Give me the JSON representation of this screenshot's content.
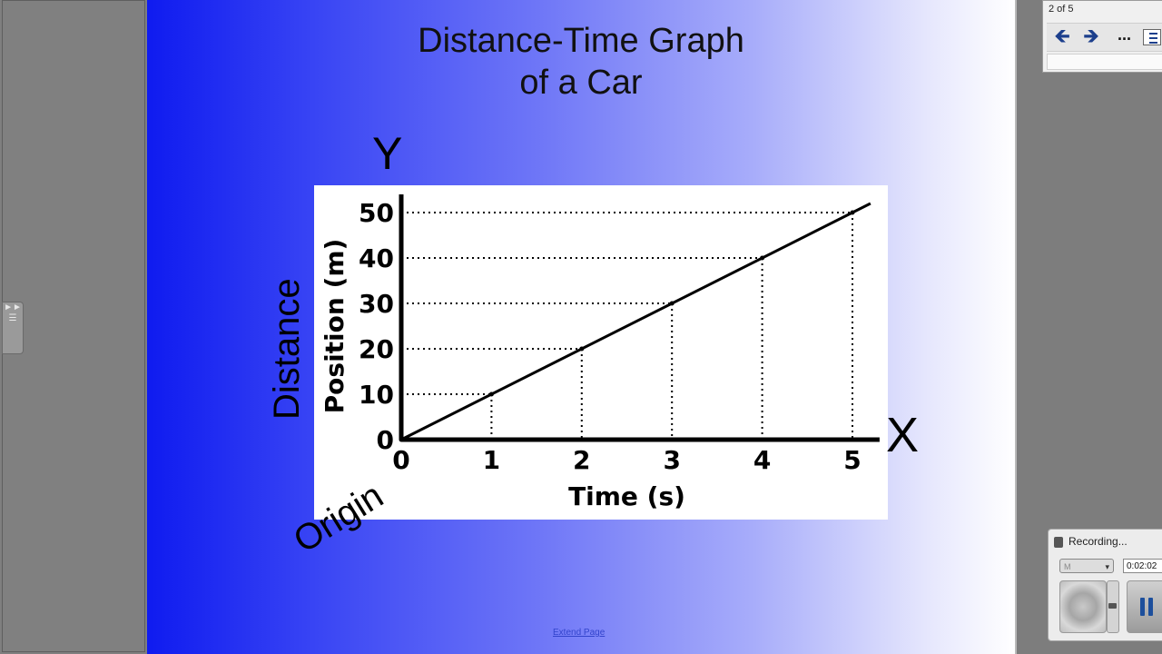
{
  "slide": {
    "title_line1": "Distance-Time Graph",
    "title_line2": "of a Car",
    "extend_link": "Extend Page"
  },
  "annotations": {
    "distance": "Distance",
    "origin": "Origin",
    "y_mark": "Y",
    "x_mark": "X"
  },
  "page_nav": {
    "page_count": "2 of 5",
    "more_label": "..."
  },
  "recorder": {
    "status": "Recording...",
    "dropdown_value": "M",
    "elapsed": "0:02:02"
  },
  "icons": {
    "side_tab": "fast-forward-icon",
    "back": "arrow-left-icon",
    "forward": "arrow-right-icon",
    "menu": "page-menu-icon",
    "record": "recorder-icon",
    "pause": "pause-icon"
  },
  "chart_data": {
    "type": "line",
    "title": "",
    "xlabel": "Time (s)",
    "ylabel": "Position (m)",
    "x": [
      0,
      1,
      2,
      3,
      4,
      5
    ],
    "y": [
      0,
      10,
      20,
      30,
      40,
      50
    ],
    "x_ticks": [
      "0",
      "1",
      "2",
      "3",
      "4",
      "5"
    ],
    "y_ticks": [
      "0",
      "10",
      "20",
      "30",
      "40",
      "50"
    ],
    "xlim": [
      0,
      5.2
    ],
    "ylim": [
      0,
      53
    ],
    "gridlines": "dotted guides from each point to both axes",
    "legend": "none",
    "line_color": "#000000"
  }
}
